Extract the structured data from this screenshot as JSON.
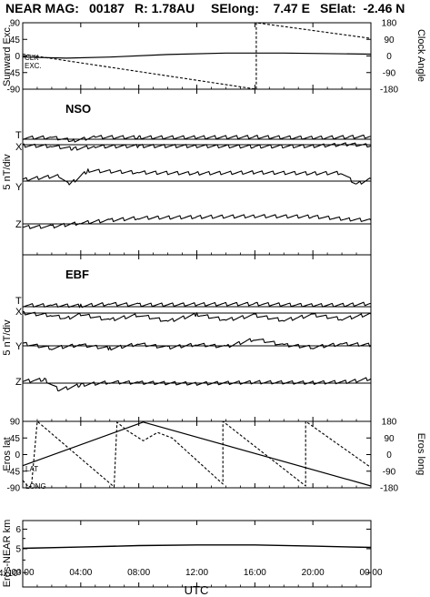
{
  "header": {
    "spacecraft": "NEAR MAG:",
    "day": "00187",
    "range": "R: 1.78AU",
    "selong": "SElong:    7.47 E",
    "selat": "SElat:  -2.46 N"
  },
  "x_axis": {
    "label": "UTC",
    "ticks": [
      "00:00",
      "04:00",
      "08:00",
      "12:00",
      "16:00",
      "20:00",
      "00:00"
    ]
  },
  "chart_data": [
    {
      "type": "line",
      "id": "orientation",
      "ylabel_left": "Sunward Exc.",
      "ylabel_right": "Clock Angle",
      "yticks_left": [
        "90",
        "45",
        "0",
        "-45",
        "-90"
      ],
      "yticks_right": [
        "180",
        "90",
        "0",
        "-90",
        "-180"
      ],
      "ylim_left": [
        -90,
        90
      ],
      "ylim_right": [
        -180,
        180
      ],
      "inline_labels": [
        "CLK",
        "EXC."
      ],
      "series": [
        {
          "name": "CLK",
          "axis": "right",
          "x": [
            0,
            16.1,
            16.1,
            24
          ],
          "y": [
            10,
            -180,
            180,
            95
          ]
        },
        {
          "name": "EXC.",
          "axis": "left",
          "x": [
            0,
            3,
            6,
            10,
            14,
            18,
            24
          ],
          "y": [
            -3,
            -6,
            -3,
            4,
            8,
            8,
            5
          ]
        }
      ]
    },
    {
      "type": "line",
      "id": "nso",
      "panel_label": "NSO",
      "ylabel": "5 nT/div",
      "components": [
        "T",
        "X",
        "Y",
        "Z"
      ],
      "series": [
        {
          "name": "T",
          "x": [
            0,
            2,
            3.5,
            5,
            8,
            12,
            16,
            20,
            22.5,
            24
          ],
          "y": [
            0.3,
            0.4,
            -0.3,
            0.5,
            0.4,
            0.4,
            0.5,
            0.3,
            0.5,
            0.6
          ]
        },
        {
          "name": "X",
          "x": [
            0,
            2,
            3.5,
            5,
            8,
            12,
            16,
            20,
            22.5,
            24
          ],
          "y": [
            -0.2,
            -0.3,
            -0.9,
            -0.4,
            -0.3,
            -0.3,
            -0.4,
            -0.3,
            0.1,
            -0.2
          ]
        },
        {
          "name": "Y",
          "x": [
            0,
            2.5,
            3.2,
            4.5,
            8,
            12,
            16,
            20,
            22,
            23,
            24
          ],
          "y": [
            0.3,
            1.2,
            -0.8,
            2.3,
            1.9,
            1.7,
            1.9,
            1.7,
            1.8,
            -0.7,
            0.5
          ]
        },
        {
          "name": "Z",
          "x": [
            0,
            2,
            4,
            6,
            8,
            12,
            16,
            20,
            22.5,
            24
          ],
          "y": [
            -0.7,
            -0.6,
            0.2,
            0.8,
            1.3,
            1.5,
            1.7,
            1.6,
            1.0,
            0.8
          ]
        }
      ]
    },
    {
      "type": "line",
      "id": "ebf",
      "panel_label": "EBF",
      "ylabel": "5 nT/div",
      "components": [
        "T",
        "X",
        "Y",
        "Z"
      ],
      "series": [
        {
          "name": "T",
          "x": [
            0,
            2,
            4,
            6,
            8,
            12,
            16,
            20,
            22.5,
            24
          ],
          "y": [
            0.3,
            0.3,
            0.2,
            0.6,
            0.4,
            0.5,
            0.6,
            0.3,
            0.4,
            0.7
          ]
        },
        {
          "name": "X",
          "x": [
            0,
            2,
            3,
            4,
            6,
            8,
            10,
            12,
            14,
            16,
            18,
            20,
            22,
            24
          ],
          "y": [
            0,
            -0.5,
            -1.2,
            -0.3,
            -1.5,
            -0.4,
            -1.8,
            -0.3,
            -1.5,
            -0.5,
            -1.6,
            -0.4,
            -1.3,
            -0.2
          ]
        },
        {
          "name": "Y",
          "x": [
            0,
            2,
            4,
            6,
            8,
            10,
            12,
            14,
            16,
            18,
            20,
            22,
            24
          ],
          "y": [
            0.5,
            -0.5,
            0.2,
            -0.6,
            0.4,
            -0.4,
            0.3,
            -0.2,
            1.5,
            0.2,
            -0.3,
            0.4,
            0.2
          ]
        },
        {
          "name": "Z",
          "x": [
            0,
            1.5,
            2.5,
            4,
            6,
            8,
            12,
            16,
            20,
            22.5,
            24
          ],
          "y": [
            0.4,
            0.8,
            -1.5,
            -0.4,
            0.2,
            0.1,
            -0.1,
            0.2,
            0.1,
            0.3,
            1.0
          ]
        }
      ]
    },
    {
      "type": "line",
      "id": "eros_direction",
      "ylabel_left": "Eros lat",
      "ylabel_right": "Eros long",
      "yticks_left": [
        "90",
        "45",
        "0",
        "-45",
        "-90"
      ],
      "yticks_right": [
        "180",
        "90",
        "0",
        "-90",
        "-180"
      ],
      "ylim_left": [
        -90,
        90
      ],
      "ylim_right": [
        -180,
        180
      ],
      "inline_labels": [
        "LAT",
        "LONG"
      ],
      "series": [
        {
          "name": "LAT",
          "axis": "left",
          "x": [
            0,
            8.3,
            24
          ],
          "y": [
            -30,
            88,
            -85
          ]
        },
        {
          "name": "LONG",
          "axis": "right",
          "x": [
            0,
            0.4,
            0.6,
            1.0,
            1.0,
            6.3,
            6.5,
            7.2,
            8.3,
            9.3,
            10.3,
            13.8,
            13.8,
            19.5,
            19.5,
            24
          ],
          "y": [
            -140,
            -175,
            -170,
            180,
            180,
            -175,
            175,
            130,
            75,
            120,
            90,
            -160,
            180,
            -170,
            180,
            -70
          ]
        }
      ]
    },
    {
      "type": "line",
      "id": "eros_range",
      "ylabel": "Eros-NEAR km",
      "yscale": "log",
      "ylim": [
        35,
        65
      ],
      "yticks": [
        "6",
        "5",
        "4x10¹"
      ],
      "series": [
        {
          "name": "range",
          "x": [
            0,
            4,
            8,
            12,
            16,
            20,
            24
          ],
          "y": [
            50.2,
            50.8,
            51.5,
            51.8,
            51.8,
            51.2,
            50.6
          ]
        }
      ]
    }
  ]
}
